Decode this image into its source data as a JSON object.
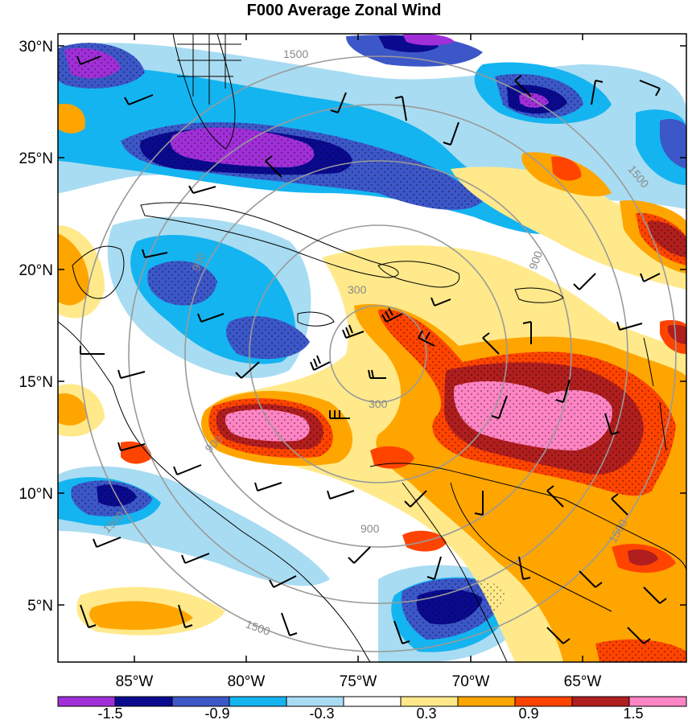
{
  "map": {
    "title": "F000 Average Zonal Wind",
    "lat_labels": [
      "30°N",
      "25°N",
      "20°N",
      "15°N",
      "10°N",
      "5°N"
    ],
    "lon_labels": [
      "85°W",
      "80°W",
      "75°W",
      "70°W",
      "65°W"
    ],
    "ring_labels": [
      "300",
      "300",
      "900",
      "900",
      "900",
      "900",
      "1500",
      "1500",
      "1500",
      "1500",
      "1500"
    ],
    "colorbar": {
      "labels": [
        "-1.5",
        "-0.9",
        "-0.3",
        "0.3",
        "0.9",
        "1.5"
      ],
      "colors": [
        "#a02fd8",
        "#0a0a8f",
        "#3c57c8",
        "#14b4f0",
        "#a8dcf2",
        "#ffffff",
        "#ffe98a",
        "#ffa500",
        "#ff4400",
        "#b01e1e",
        "#ff84c4"
      ]
    },
    "colors": {
      "ring": "#9a9a9a",
      "coast": "#000000",
      "barb": "#000000"
    }
  }
}
